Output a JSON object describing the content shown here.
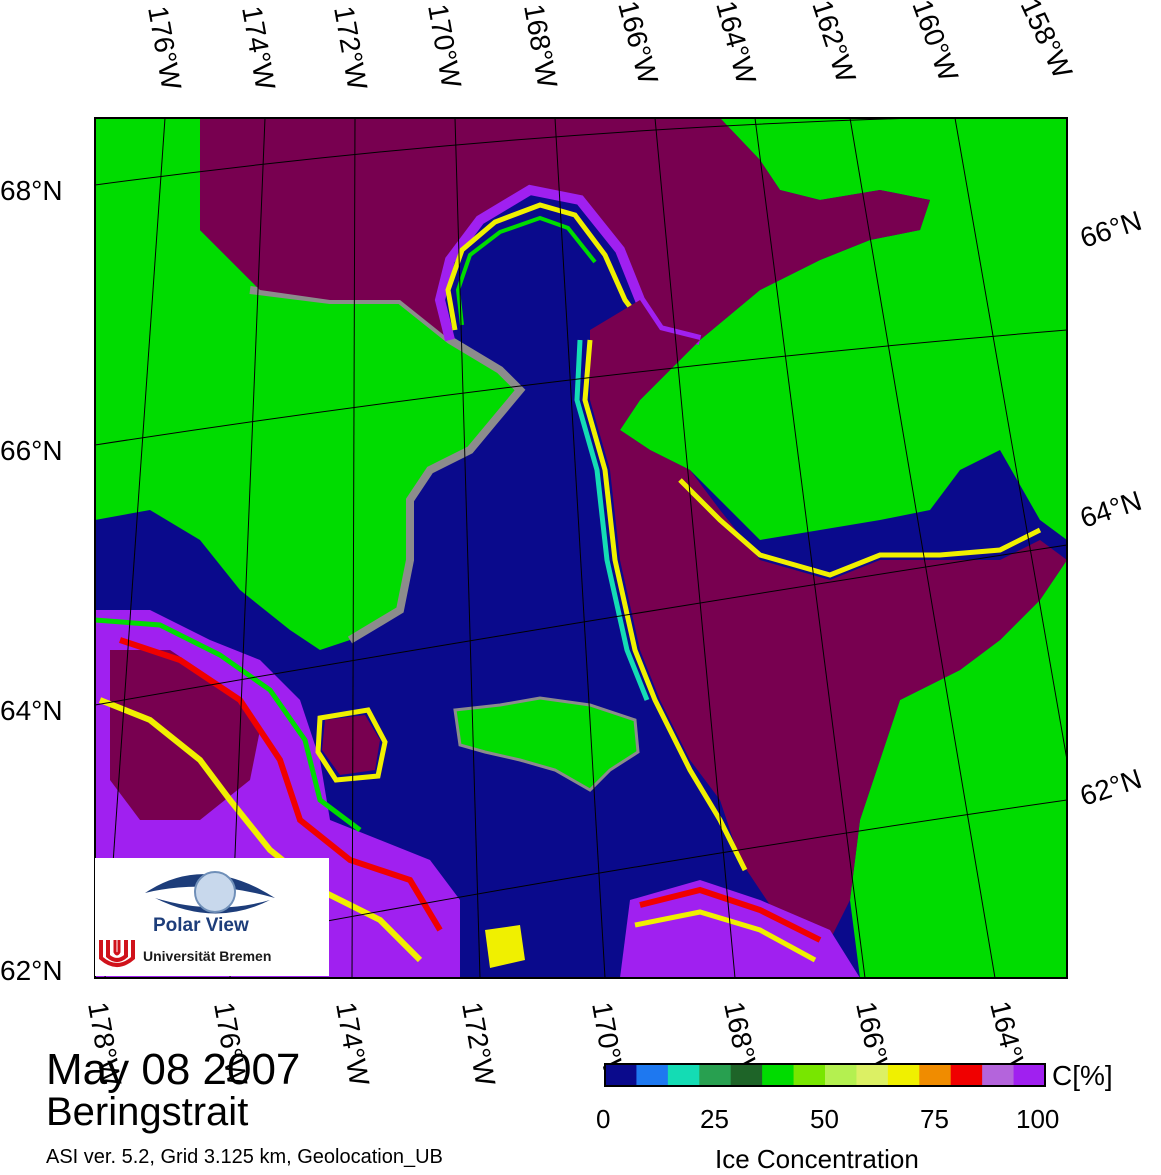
{
  "header": {
    "date": "May 08 2007",
    "region": "Beringstrait",
    "footnote": "ASI ver. 5.2,  Grid 3.125 km, Geolocation_UB"
  },
  "map": {
    "top_lon_labels": [
      "176°W",
      "174°W",
      "172°W",
      "170°W",
      "168°W",
      "166°W",
      "164°W",
      "162°W",
      "160°W",
      "158°W"
    ],
    "bottom_lon_labels": [
      "178°W",
      "176°W",
      "174°W",
      "172°W",
      "170°W",
      "168°W",
      "166°W",
      "164°W"
    ],
    "left_lat_labels": [
      "68°N",
      "66°N",
      "64°N",
      "62°N"
    ],
    "right_lat_labels": [
      "66°N",
      "64°N",
      "62°N"
    ],
    "colors": {
      "water": "#0a0a8c",
      "land": "#00dc00",
      "coast": "#8c8c8c",
      "ice_full": "#780050",
      "ice_high": "#a020f0"
    }
  },
  "colorbar": {
    "title": "Ice Concentration",
    "unit": "C[%]",
    "ticks": [
      "0",
      "25",
      "50",
      "75",
      "100"
    ],
    "colors": [
      "#0a0a8c",
      "#1e78f0",
      "#14dcb4",
      "#28a050",
      "#1e6428",
      "#00dc00",
      "#78e600",
      "#b4f050",
      "#dcf064",
      "#f0f000",
      "#f08c00",
      "#f00000",
      "#b464dc",
      "#a020f0"
    ]
  },
  "logo": {
    "name": "Polar View",
    "institution": "Universität Bremen"
  }
}
